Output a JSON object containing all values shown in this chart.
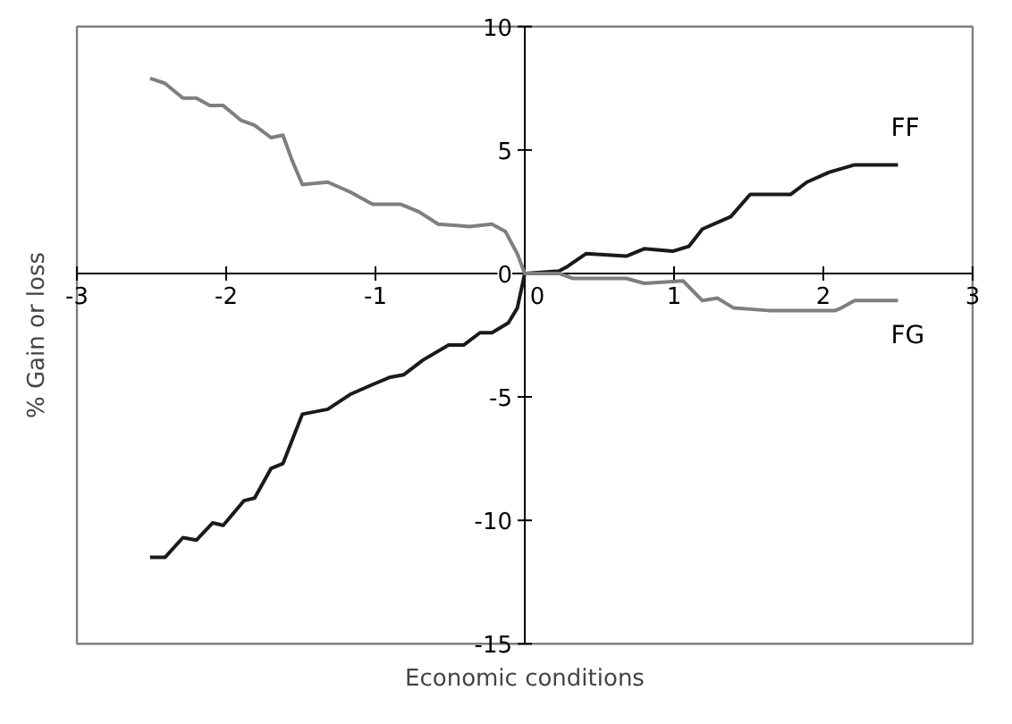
{
  "chart_data": {
    "type": "line",
    "xlabel": "Economic conditions",
    "ylabel": "% Gain or loss",
    "xlim": [
      -3,
      3
    ],
    "ylim": [
      -15,
      10
    ],
    "xticks": [
      -3,
      -2,
      -1,
      0,
      1,
      2,
      3
    ],
    "yticks": [
      -15,
      -10,
      -5,
      0,
      5,
      10
    ],
    "grid": false,
    "marker": "none",
    "line_style": "solid",
    "series": [
      {
        "name": "FF",
        "color": "#1a1a1a",
        "x": [
          -2.51,
          -2.41,
          -2.29,
          -2.2,
          -2.09,
          -2.02,
          -1.88,
          -1.81,
          -1.7,
          -1.62,
          -1.49,
          -1.32,
          -1.17,
          -1.02,
          -0.9,
          -0.81,
          -0.68,
          -0.51,
          -0.41,
          -0.3,
          -0.22,
          -0.11,
          -0.05,
          0,
          0.23,
          0.29,
          0.41,
          0.68,
          0.8,
          0.99,
          1.1,
          1.19,
          1.38,
          1.51,
          1.78,
          1.89,
          2.04,
          2.21,
          2.5
        ],
        "values": [
          -11.5,
          -11.5,
          -10.7,
          -10.8,
          -10.1,
          -10.2,
          -9.2,
          -9.1,
          -7.9,
          -7.7,
          -5.7,
          -5.5,
          -4.9,
          -4.5,
          -4.2,
          -4.1,
          -3.5,
          -2.9,
          -2.9,
          -2.4,
          -2.4,
          -2.0,
          -1.4,
          0,
          0.1,
          0.3,
          0.8,
          0.7,
          1.0,
          0.9,
          1.1,
          1.8,
          2.3,
          3.2,
          3.2,
          3.7,
          4.1,
          4.4,
          4.4
        ]
      },
      {
        "name": "FG",
        "color": "#7f7f7f",
        "x": [
          -2.51,
          -2.41,
          -2.29,
          -2.2,
          -2.11,
          -2.02,
          -1.9,
          -1.81,
          -1.7,
          -1.62,
          -1.56,
          -1.49,
          -1.32,
          -1.17,
          -1.02,
          -0.83,
          -0.71,
          -0.58,
          -0.37,
          -0.22,
          -0.13,
          -0.05,
          0,
          0.23,
          0.32,
          0.68,
          0.8,
          1.06,
          1.19,
          1.29,
          1.4,
          1.63,
          2.08,
          2.12,
          2.21,
          2.5
        ],
        "values": [
          7.9,
          7.7,
          7.1,
          7.1,
          6.8,
          6.8,
          6.2,
          6.0,
          5.5,
          5.6,
          4.6,
          3.6,
          3.7,
          3.3,
          2.8,
          2.8,
          2.5,
          2.0,
          1.9,
          2.0,
          1.7,
          0.8,
          0,
          0,
          -0.2,
          -0.2,
          -0.4,
          -0.3,
          -1.1,
          -1.0,
          -1.4,
          -1.5,
          -1.5,
          -1.4,
          -1.1,
          -1.1
        ]
      }
    ]
  }
}
